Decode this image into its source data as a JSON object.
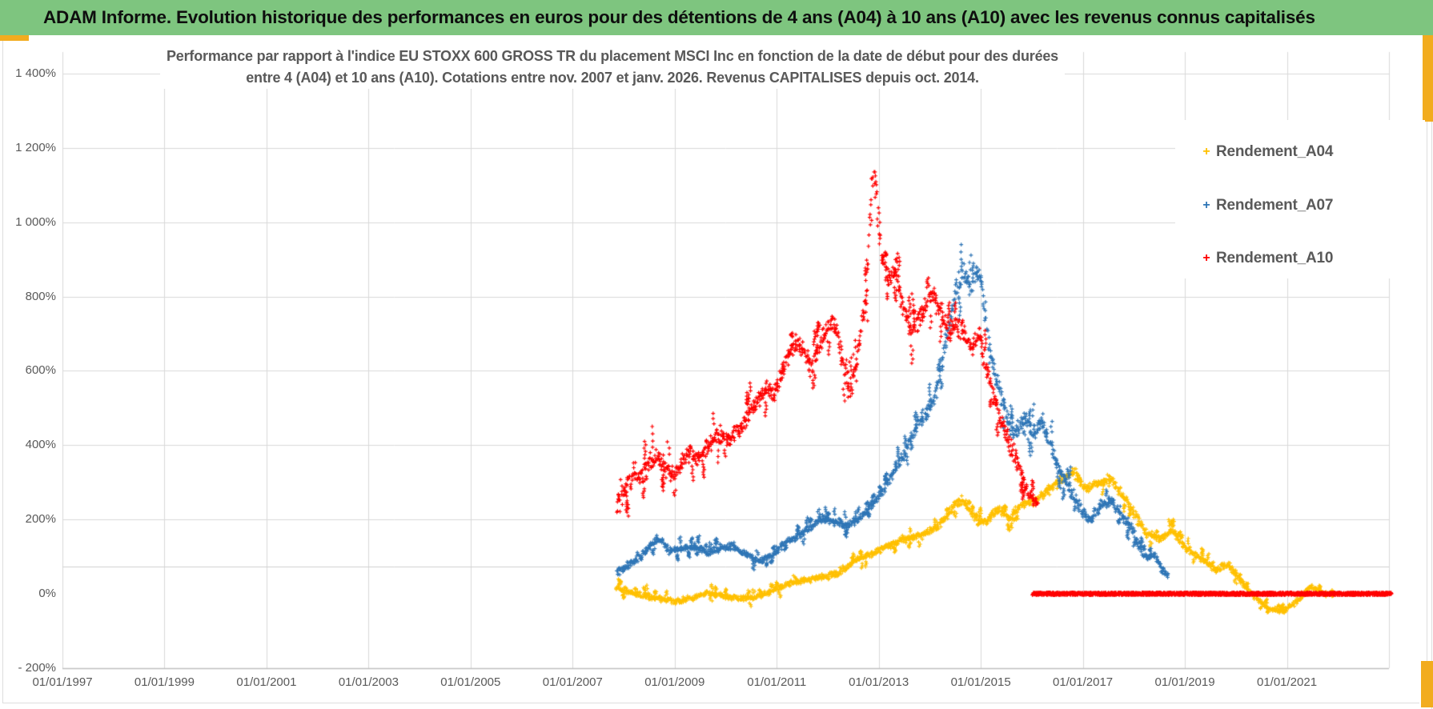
{
  "header": {
    "title": "ADAM Informe. Evolution historique des performances en euros pour des détentions de 4 ans (A04) à 10 ans (A10) avec les revenus connus capitalisés",
    "bg_color": "#7EC57F",
    "text_color": "#0E0E0E"
  },
  "colors": {
    "grid": "#D9D9D9",
    "secondary_grid": "#CFCFCF",
    "axis": "#BFBFBF",
    "tick_text": "#595959",
    "title_text": "#595959",
    "accent_gold": "#F2AC1E",
    "background": "#FFFFFF"
  },
  "chart_data": {
    "type": "scatter",
    "title_line1": "Performance par rapport à l'indice EU STOXX 600 GROSS TR  du placement MSCI Inc en fonction de la date de début pour des durées",
    "title_line2": "entre 4 (A04) et 10 ans (A10). Cotations entre nov. 2007 et janv. 2026. Revenus CAPITALISES depuis oct. 2014.",
    "xlabel": "",
    "ylabel": "",
    "grid": true,
    "legend_position": "top-right",
    "x_range_years": [
      1997,
      2023.1
    ],
    "ylim_pct": [
      -200,
      1458
    ],
    "x_ticks": [
      {
        "label": "01/01/1997",
        "year": 1997
      },
      {
        "label": "01/01/1999",
        "year": 1999
      },
      {
        "label": "01/01/2001",
        "year": 2001
      },
      {
        "label": "01/01/2003",
        "year": 2003
      },
      {
        "label": "01/01/2005",
        "year": 2005
      },
      {
        "label": "01/01/2007",
        "year": 2007
      },
      {
        "label": "01/01/2009",
        "year": 2009
      },
      {
        "label": "01/01/2011",
        "year": 2011
      },
      {
        "label": "01/01/2013",
        "year": 2013
      },
      {
        "label": "01/01/2015",
        "year": 2015
      },
      {
        "label": "01/01/2017",
        "year": 2017
      },
      {
        "label": "01/01/2019",
        "year": 2019
      },
      {
        "label": "01/01/2021",
        "year": 2021
      }
    ],
    "grid_years": [
      1997,
      1999,
      2001,
      2003,
      2005,
      2007,
      2009,
      2011,
      2013,
      2015,
      2017,
      2019,
      2021,
      2023
    ],
    "y_ticks": [
      {
        "label": "1 400%",
        "value": 1400
      },
      {
        "label": "1 200%",
        "value": 1200
      },
      {
        "label": "1 000%",
        "value": 1000
      },
      {
        "label": "800%",
        "value": 800
      },
      {
        "label": "600%",
        "value": 600
      },
      {
        "label": "400%",
        "value": 400
      },
      {
        "label": "200%",
        "value": 200
      },
      {
        "label": "0%",
        "value": 0
      },
      {
        "label": "- 200%",
        "value": -200
      }
    ],
    "secondary_gridline_pct": 73,
    "series": [
      {
        "name": "Rendement_A04",
        "color": "#FFC000",
        "marker": "+",
        "anchors": [
          [
            2007.87,
            15,
            12
          ],
          [
            2008.2,
            2,
            12
          ],
          [
            2008.6,
            -10,
            12
          ],
          [
            2009.0,
            -22,
            11
          ],
          [
            2009.35,
            -12,
            11
          ],
          [
            2009.65,
            4,
            11
          ],
          [
            2009.95,
            -6,
            11
          ],
          [
            2010.3,
            -14,
            11
          ],
          [
            2010.6,
            -10,
            11
          ],
          [
            2010.9,
            8,
            11
          ],
          [
            2011.2,
            25,
            11
          ],
          [
            2011.5,
            36,
            11
          ],
          [
            2011.85,
            43,
            11
          ],
          [
            2012.2,
            55,
            12
          ],
          [
            2012.55,
            90,
            12
          ],
          [
            2012.9,
            110,
            12
          ],
          [
            2013.2,
            130,
            13
          ],
          [
            2013.5,
            148,
            13
          ],
          [
            2013.85,
            158,
            14
          ],
          [
            2014.15,
            180,
            15
          ],
          [
            2014.5,
            238,
            16
          ],
          [
            2014.65,
            252,
            16
          ],
          [
            2014.85,
            212,
            16
          ],
          [
            2015.1,
            190,
            16
          ],
          [
            2015.35,
            228,
            16
          ],
          [
            2015.55,
            202,
            16
          ],
          [
            2015.8,
            238,
            16
          ],
          [
            2016.05,
            252,
            17
          ],
          [
            2016.35,
            283,
            17
          ],
          [
            2016.65,
            315,
            18
          ],
          [
            2016.85,
            325,
            18
          ],
          [
            2017.05,
            282,
            18
          ],
          [
            2017.3,
            298,
            18
          ],
          [
            2017.55,
            308,
            18
          ],
          [
            2017.8,
            262,
            18
          ],
          [
            2018.05,
            208,
            17
          ],
          [
            2018.25,
            162,
            16
          ],
          [
            2018.5,
            148,
            15
          ],
          [
            2018.75,
            170,
            15
          ],
          [
            2019.05,
            118,
            14
          ],
          [
            2019.35,
            92,
            13
          ],
          [
            2019.6,
            62,
            12
          ],
          [
            2019.85,
            78,
            12
          ],
          [
            2020.1,
            35,
            11
          ],
          [
            2020.4,
            -12,
            10
          ],
          [
            2020.65,
            -40,
            9
          ],
          [
            2020.9,
            -48,
            9
          ],
          [
            2021.1,
            -30,
            9
          ],
          [
            2021.3,
            -6,
            9
          ],
          [
            2021.45,
            20,
            9
          ],
          [
            2021.6,
            10,
            9
          ],
          [
            2021.75,
            -2,
            8
          ],
          [
            2021.9,
            6,
            8
          ]
        ]
      },
      {
        "name": "Rendement_A07",
        "color": "#2E75B6",
        "marker": "+",
        "anchors": [
          [
            2007.87,
            55,
            16
          ],
          [
            2008.1,
            78,
            16
          ],
          [
            2008.35,
            105,
            16
          ],
          [
            2008.6,
            140,
            16
          ],
          [
            2008.72,
            150,
            15
          ],
          [
            2008.9,
            115,
            15
          ],
          [
            2009.15,
            122,
            14
          ],
          [
            2009.4,
            128,
            14
          ],
          [
            2009.65,
            110,
            14
          ],
          [
            2009.9,
            124,
            14
          ],
          [
            2010.15,
            128,
            14
          ],
          [
            2010.4,
            106,
            14
          ],
          [
            2010.65,
            88,
            13
          ],
          [
            2010.9,
            102,
            14
          ],
          [
            2011.15,
            136,
            14
          ],
          [
            2011.4,
            152,
            14
          ],
          [
            2011.65,
            178,
            15
          ],
          [
            2011.9,
            205,
            15
          ],
          [
            2012.15,
            193,
            15
          ],
          [
            2012.4,
            184,
            15
          ],
          [
            2012.65,
            207,
            15
          ],
          [
            2012.9,
            246,
            16
          ],
          [
            2013.1,
            282,
            18
          ],
          [
            2013.3,
            332,
            20
          ],
          [
            2013.5,
            378,
            22
          ],
          [
            2013.7,
            442,
            24
          ],
          [
            2013.9,
            482,
            25
          ],
          [
            2014.1,
            525,
            28
          ],
          [
            2014.3,
            660,
            38
          ],
          [
            2014.5,
            810,
            45
          ],
          [
            2014.65,
            865,
            42
          ],
          [
            2014.8,
            820,
            40
          ],
          [
            2014.92,
            872,
            38
          ],
          [
            2015.02,
            835,
            38
          ],
          [
            2015.18,
            645,
            40
          ],
          [
            2015.35,
            558,
            38
          ],
          [
            2015.5,
            478,
            36
          ],
          [
            2015.65,
            432,
            34
          ],
          [
            2015.85,
            468,
            33
          ],
          [
            2016.05,
            432,
            33
          ],
          [
            2016.2,
            465,
            32
          ],
          [
            2016.38,
            398,
            30
          ],
          [
            2016.55,
            330,
            28
          ],
          [
            2016.75,
            278,
            26
          ],
          [
            2016.95,
            228,
            24
          ],
          [
            2017.15,
            196,
            22
          ],
          [
            2017.35,
            238,
            22
          ],
          [
            2017.55,
            248,
            22
          ],
          [
            2017.75,
            214,
            21
          ],
          [
            2017.95,
            178,
            20
          ],
          [
            2018.1,
            128,
            18
          ],
          [
            2018.25,
            95,
            17
          ],
          [
            2018.4,
            108,
            16
          ],
          [
            2018.55,
            62,
            15
          ],
          [
            2018.68,
            48,
            14
          ]
        ]
      },
      {
        "name": "Rendement_A10",
        "color": "#FF0000",
        "marker": "+",
        "anchors": [
          [
            2007.87,
            245,
            55
          ],
          [
            2008.05,
            285,
            45
          ],
          [
            2008.2,
            330,
            42
          ],
          [
            2008.35,
            305,
            40
          ],
          [
            2008.5,
            352,
            38
          ],
          [
            2008.65,
            372,
            38
          ],
          [
            2008.8,
            342,
            36
          ],
          [
            2009.0,
            312,
            34
          ],
          [
            2009.15,
            356,
            33
          ],
          [
            2009.3,
            386,
            33
          ],
          [
            2009.45,
            362,
            32
          ],
          [
            2009.65,
            396,
            32
          ],
          [
            2009.85,
            430,
            33
          ],
          [
            2010.05,
            416,
            33
          ],
          [
            2010.25,
            442,
            34
          ],
          [
            2010.45,
            482,
            35
          ],
          [
            2010.65,
            522,
            36
          ],
          [
            2010.8,
            556,
            36
          ],
          [
            2010.95,
            532,
            36
          ],
          [
            2011.1,
            602,
            38
          ],
          [
            2011.25,
            652,
            38
          ],
          [
            2011.4,
            676,
            38
          ],
          [
            2011.55,
            642,
            38
          ],
          [
            2011.7,
            612,
            38
          ],
          [
            2011.85,
            682,
            40
          ],
          [
            2012.0,
            712,
            40
          ],
          [
            2012.12,
            742,
            42
          ],
          [
            2012.27,
            652,
            44
          ],
          [
            2012.42,
            545,
            44
          ],
          [
            2012.55,
            605,
            42
          ],
          [
            2012.65,
            705,
            42
          ],
          [
            2012.76,
            825,
            48
          ],
          [
            2012.84,
            1005,
            55
          ],
          [
            2012.9,
            1150,
            50
          ],
          [
            2012.97,
            1048,
            48
          ],
          [
            2013.07,
            902,
            45
          ],
          [
            2013.17,
            845,
            42
          ],
          [
            2013.32,
            868,
            42
          ],
          [
            2013.47,
            782,
            42
          ],
          [
            2013.62,
            705,
            40
          ],
          [
            2013.77,
            732,
            40
          ],
          [
            2013.92,
            782,
            40
          ],
          [
            2014.07,
            802,
            40
          ],
          [
            2014.22,
            762,
            40
          ],
          [
            2014.37,
            702,
            40
          ],
          [
            2014.52,
            722,
            38
          ],
          [
            2014.67,
            702,
            38
          ],
          [
            2014.82,
            662,
            38
          ],
          [
            2014.97,
            700,
            38
          ],
          [
            2015.12,
            602,
            40
          ],
          [
            2015.27,
            522,
            40
          ],
          [
            2015.42,
            452,
            38
          ],
          [
            2015.57,
            402,
            36
          ],
          [
            2015.72,
            352,
            32
          ],
          [
            2015.87,
            292,
            28
          ],
          [
            2016.0,
            256,
            22
          ],
          [
            2016.12,
            240,
            18
          ]
        ],
        "flat_segment": {
          "from": 2016.02,
          "to": 2023.05,
          "value": 0
        }
      }
    ]
  }
}
